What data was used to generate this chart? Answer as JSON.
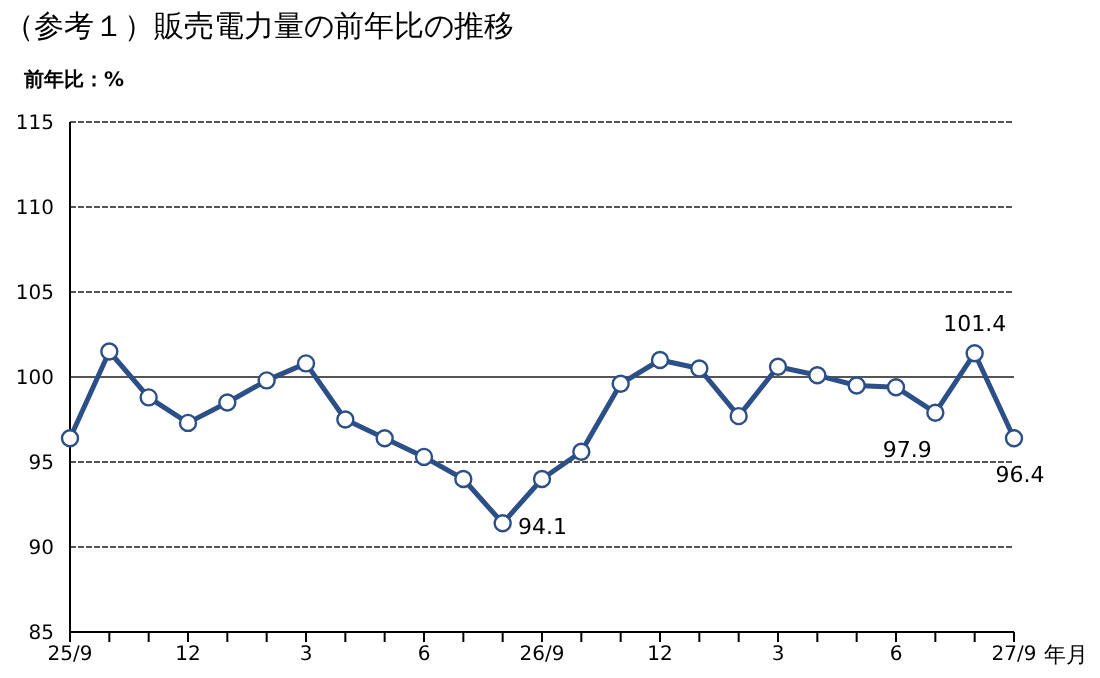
{
  "chart_data": {
    "type": "line",
    "title": "（参考１）販売電力量の前年比の推移",
    "ylabel": "前年比：%",
    "xlabel": "年月",
    "categories": [
      "25/9",
      null,
      null,
      "12",
      null,
      null,
      "3",
      null,
      null,
      "6",
      null,
      null,
      "26/9",
      null,
      null,
      "12",
      null,
      null,
      "3",
      null,
      null,
      "6",
      null,
      null,
      "27/9"
    ],
    "series": [
      {
        "color": "#2b4f86",
        "values": [
          96.4,
          101.5,
          98.8,
          97.3,
          98.5,
          99.8,
          100.8,
          97.5,
          96.4,
          95.3,
          94.0,
          91.4,
          94.0,
          95.6,
          99.6,
          101.0,
          100.5,
          97.7,
          100.6,
          100.1,
          99.5,
          99.4,
          97.9,
          101.4,
          96.4
        ],
        "value_labels": [
          null,
          null,
          null,
          null,
          null,
          null,
          null,
          null,
          null,
          null,
          null,
          null,
          null,
          null,
          null,
          null,
          null,
          null,
          null,
          null,
          null,
          null,
          "97.9",
          "101.4",
          "96.4"
        ]
      }
    ],
    "ylim": [
      85,
      115
    ],
    "yticks": [
      85,
      90,
      95,
      100,
      105,
      110,
      115
    ],
    "grid": "y",
    "marker": "circle",
    "line_style": "solid",
    "ref_lines": [
      {
        "axis": "y",
        "value": 100,
        "color": "#555555",
        "line_style": "solid"
      }
    ],
    "annotations": [
      "94.1"
    ]
  }
}
